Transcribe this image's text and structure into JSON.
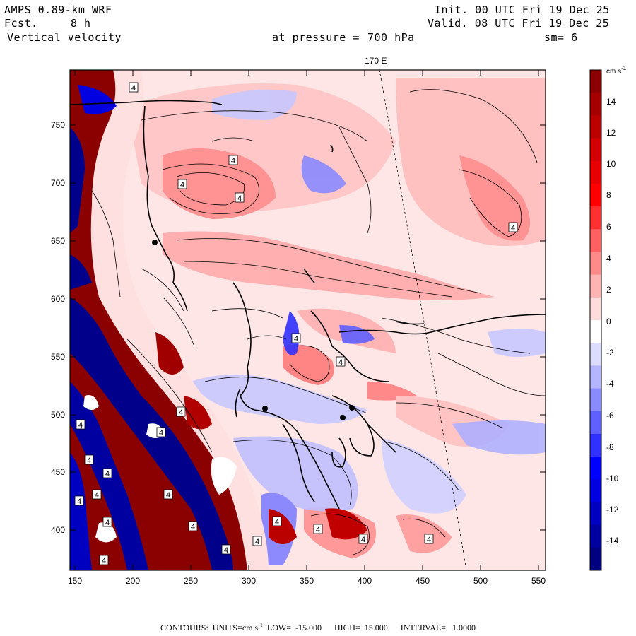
{
  "header": {
    "model": "AMPS 0.89-km WRF",
    "fcst_label": "Fcst.",
    "fcst_value": "8 h",
    "field": "Vertical velocity",
    "init": "Init. 00 UTC Fri 19 Dec 25",
    "valid": "Valid. 08 UTC Fri 19 Dec 25",
    "pressure_label": "at pressure =",
    "pressure_value": "700 hPa",
    "smoothing": "sm= 6"
  },
  "map": {
    "meridian_label": "170 E",
    "x_ticks": [
      "150",
      "200",
      "250",
      "300",
      "350",
      "400",
      "450",
      "500",
      "550"
    ],
    "y_ticks": [
      "750",
      "700",
      "650",
      "600",
      "550",
      "500",
      "450",
      "400"
    ],
    "contour_labels": [
      "4",
      "4",
      "4",
      "4",
      "4",
      "4",
      "4",
      "4",
      "4",
      "4",
      "4",
      "4",
      "4",
      "4",
      "4",
      "4",
      "4",
      "4",
      "4",
      "4",
      "4",
      "4",
      "4",
      "4"
    ]
  },
  "colorbar": {
    "units_main": "cm s",
    "units_exp": "-1",
    "labels": [
      "14",
      "12",
      "10",
      "8",
      "6",
      "4",
      "2",
      "0",
      "-2",
      "-4",
      "-6",
      "-8",
      "-10",
      "-12",
      "-14"
    ],
    "colors": [
      "#8b0000",
      "#a40000",
      "#bb0000",
      "#d20000",
      "#e80000",
      "#ff0000",
      "#ff3030",
      "#ff6060",
      "#ff8a8a",
      "#ffb4b4",
      "#ffdcdc",
      "#ffffff",
      "#dcdcff",
      "#b4b4ff",
      "#8a8aff",
      "#6060ff",
      "#3030ff",
      "#0000ff",
      "#0000e0",
      "#0000c0",
      "#0000a0",
      "#000080"
    ]
  },
  "footer": {
    "contours": "CONTOURS:  UNITS=cm s",
    "exp": "-1",
    "rest": "  LOW=  -15.000      HIGH=  15.000      INTERVAL=   1.0000"
  }
}
